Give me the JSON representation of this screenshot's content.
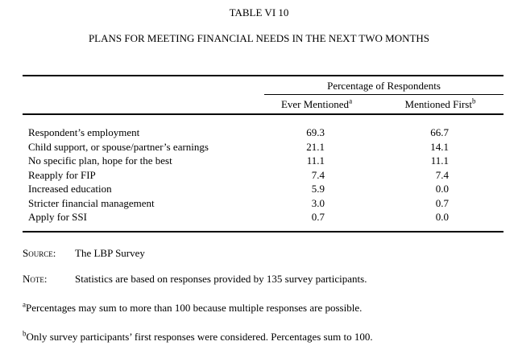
{
  "title": "TABLE VI 10",
  "subtitle": "PLANS FOR MEETING FINANCIAL NEEDS IN THE NEXT TWO MONTHS",
  "table": {
    "group_header": "Percentage of Respondents",
    "columns": [
      {
        "label": "Ever Mentioned",
        "sup": "a"
      },
      {
        "label": "Mentioned First",
        "sup": "b"
      }
    ],
    "rows": [
      {
        "label": "Respondent’s employment",
        "ever": "69.3",
        "first": "66.7"
      },
      {
        "label": "Child support, or spouse/partner’s earnings",
        "ever": "21.1",
        "first": "14.1"
      },
      {
        "label": "No specific plan, hope for the best",
        "ever": "11.1",
        "first": "11.1"
      },
      {
        "label": "Reapply for FIP",
        "ever": "7.4",
        "first": "7.4"
      },
      {
        "label": "Increased education",
        "ever": "5.9",
        "first": "0.0"
      },
      {
        "label": "Stricter financial management",
        "ever": "3.0",
        "first": "0.7"
      },
      {
        "label": "Apply for SSI",
        "ever": "0.7",
        "first": "0.0"
      }
    ]
  },
  "footer": {
    "source_label": "Source:",
    "source_text": "The LBP Survey",
    "note_label": "Note:",
    "note_text": "Statistics are based on responses provided by 135 survey participants.",
    "footnotes": [
      {
        "marker": "a",
        "text": "Percentages may sum to more than 100 because multiple responses are possible."
      },
      {
        "marker": "b",
        "text": "Only survey participants’ first responses were considered.  Percentages sum to 100."
      }
    ]
  }
}
